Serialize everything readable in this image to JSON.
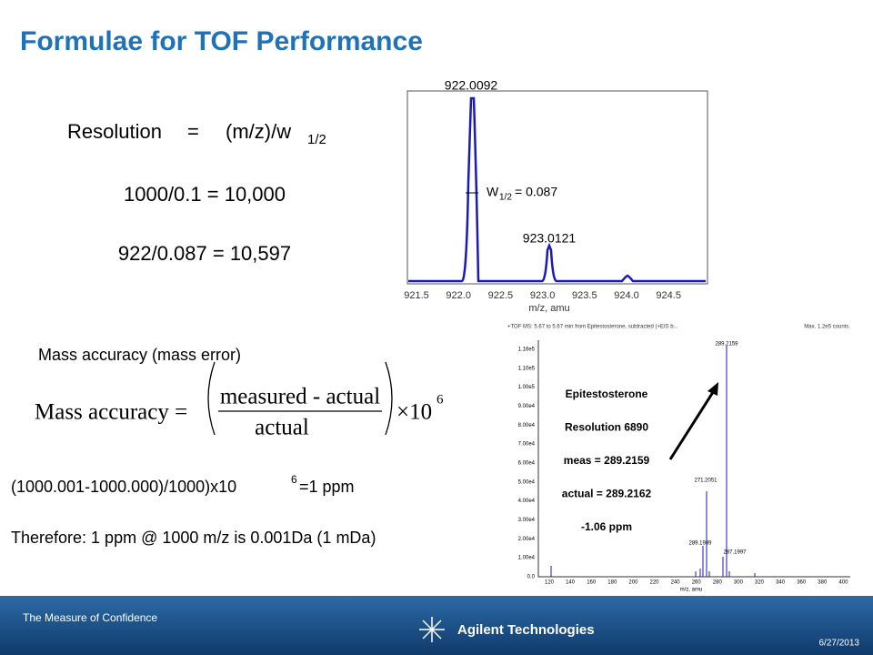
{
  "title": "Formulae for TOF Performance",
  "resolution": {
    "lhs": "Resolution",
    "eq": "=",
    "rhs": "(m/z)/w",
    "sub": "1/2",
    "example1": "1000/0.1 = 10,000",
    "example2": "922/0.087 = 10,597"
  },
  "spectrum1": {
    "peak1": "922.0092",
    "peak2": "923.0121",
    "width_label": "W",
    "width_sub": "1/2",
    "width_value": "= 0.087",
    "xticks": [
      "921.5",
      "922.0",
      "922.5",
      "923.0",
      "923.5",
      "924.0",
      "924.5"
    ],
    "xlabel": "m/z, amu"
  },
  "mass_accuracy": {
    "heading": "Mass accuracy (mass error)",
    "lhs": "Mass accuracy =",
    "numerator": "measured - actual",
    "denominator": "actual",
    "factor": "×10",
    "exponent": "6",
    "example": "(1000.001-1000.000)/1000)x10",
    "example_exp": "6",
    "example_tail": "=1  ppm",
    "conclusion": "Therefore: 1 ppm @ 1000 m/z is 0.001Da  (1 mDa)"
  },
  "spectrum2": {
    "header": "+TOF MS: 5.67 to 5.67 min from Epitestosterone, subtracted (+EIS b...",
    "max": "Max. 1.2e5 counts.",
    "yticks": [
      "1.16e5",
      "1.10e5",
      "1.00e5",
      "9.00e4",
      "8.00e4",
      "7.00e4",
      "6.00e4",
      "5.00e4",
      "4.00e4",
      "3.00e4",
      "2.00e4",
      "1.00e4",
      "0.0"
    ],
    "xticks": [
      "120",
      "140",
      "160",
      "180",
      "200",
      "220",
      "240",
      "260",
      "280",
      "300",
      "320",
      "340",
      "360",
      "380",
      "400"
    ],
    "xlabel": "m/z, amu",
    "peaks": [
      "289.2159",
      "271.2051",
      "289.1989",
      "287.1997"
    ],
    "annotations": [
      "Epitestosterone",
      "Resolution 6890",
      "meas = 289.2159",
      "actual = 289.2162",
      "-1.06 ppm"
    ]
  },
  "footer": {
    "tagline": "The Measure of Confidence",
    "company": "Agilent Technologies",
    "date": "6/27/2013"
  }
}
